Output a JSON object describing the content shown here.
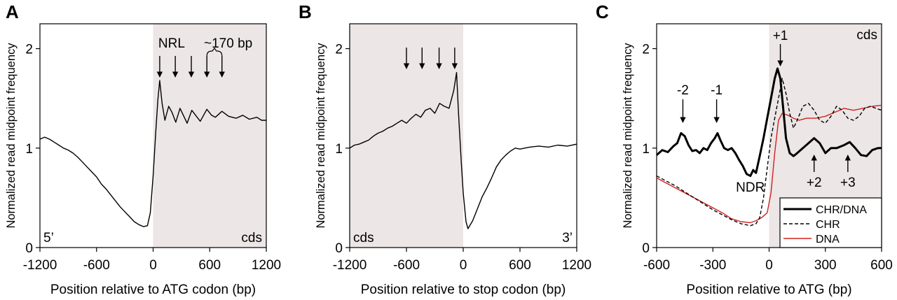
{
  "chart_data": [
    {
      "panel": "A",
      "type": "line",
      "xlabel": "Position relative to ATG codon (bp)",
      "ylabel": "Normalized read midpoint frequency",
      "xlim": [
        -1200,
        1200
      ],
      "ylim": [
        0,
        2.25
      ],
      "xticks": [
        "-1200",
        "-600",
        "0",
        "600",
        "1200"
      ],
      "yticks": [
        "0",
        "1",
        "2"
      ],
      "shaded_region": [
        0,
        1200
      ],
      "corner_labels": {
        "left": "5’",
        "right": "cds"
      },
      "annotations": {
        "nrl": "NRL",
        "spacing": "~170 bp"
      },
      "arrow_x": [
        70,
        235,
        405,
        570,
        730
      ],
      "series": [
        {
          "color": "#000000",
          "points": [
            [
              -1200,
              1.09
            ],
            [
              -1150,
              1.11
            ],
            [
              -1100,
              1.09
            ],
            [
              -1050,
              1.06
            ],
            [
              -1000,
              1.03
            ],
            [
              -950,
              1.0
            ],
            [
              -900,
              0.98
            ],
            [
              -850,
              0.95
            ],
            [
              -800,
              0.91
            ],
            [
              -750,
              0.86
            ],
            [
              -700,
              0.81
            ],
            [
              -650,
              0.76
            ],
            [
              -600,
              0.71
            ],
            [
              -550,
              0.64
            ],
            [
              -500,
              0.59
            ],
            [
              -450,
              0.53
            ],
            [
              -400,
              0.47
            ],
            [
              -350,
              0.41
            ],
            [
              -300,
              0.36
            ],
            [
              -250,
              0.31
            ],
            [
              -200,
              0.26
            ],
            [
              -150,
              0.23
            ],
            [
              -100,
              0.21
            ],
            [
              -60,
              0.22
            ],
            [
              -30,
              0.35
            ],
            [
              0,
              0.72
            ],
            [
              25,
              1.12
            ],
            [
              50,
              1.48
            ],
            [
              70,
              1.68
            ],
            [
              95,
              1.45
            ],
            [
              125,
              1.28
            ],
            [
              165,
              1.42
            ],
            [
              200,
              1.36
            ],
            [
              240,
              1.26
            ],
            [
              285,
              1.4
            ],
            [
              320,
              1.33
            ],
            [
              360,
              1.25
            ],
            [
              410,
              1.38
            ],
            [
              450,
              1.33
            ],
            [
              500,
              1.27
            ],
            [
              570,
              1.39
            ],
            [
              620,
              1.33
            ],
            [
              660,
              1.31
            ],
            [
              730,
              1.37
            ],
            [
              800,
              1.32
            ],
            [
              880,
              1.3
            ],
            [
              950,
              1.33
            ],
            [
              1020,
              1.29
            ],
            [
              1100,
              1.31
            ],
            [
              1150,
              1.28
            ],
            [
              1200,
              1.28
            ]
          ]
        }
      ]
    },
    {
      "panel": "B",
      "type": "line",
      "xlabel": "Position relative to stop codon (bp)",
      "ylabel": "Normalized read midpoint frequency",
      "xlim": [
        -1200,
        1200
      ],
      "ylim": [
        0,
        2.25
      ],
      "xticks": [
        "-1200",
        "-600",
        "0",
        "600",
        "1200"
      ],
      "yticks": [
        "0",
        "1",
        "2"
      ],
      "shaded_region": [
        -1200,
        0
      ],
      "corner_labels": {
        "left": "cds",
        "right": "3’"
      },
      "arrow_x": [
        -600,
        -435,
        -255,
        -90
      ],
      "series": [
        {
          "color": "#000000",
          "points": [
            [
              -1200,
              1.0
            ],
            [
              -1150,
              1.03
            ],
            [
              -1100,
              1.04
            ],
            [
              -1050,
              1.06
            ],
            [
              -1000,
              1.08
            ],
            [
              -950,
              1.12
            ],
            [
              -900,
              1.15
            ],
            [
              -850,
              1.17
            ],
            [
              -800,
              1.2
            ],
            [
              -750,
              1.22
            ],
            [
              -700,
              1.25
            ],
            [
              -650,
              1.28
            ],
            [
              -600,
              1.25
            ],
            [
              -550,
              1.3
            ],
            [
              -500,
              1.34
            ],
            [
              -450,
              1.31
            ],
            [
              -400,
              1.38
            ],
            [
              -350,
              1.4
            ],
            [
              -300,
              1.35
            ],
            [
              -250,
              1.45
            ],
            [
              -200,
              1.42
            ],
            [
              -150,
              1.4
            ],
            [
              -100,
              1.58
            ],
            [
              -70,
              1.76
            ],
            [
              -50,
              1.35
            ],
            [
              -20,
              0.85
            ],
            [
              0,
              0.55
            ],
            [
              30,
              0.26
            ],
            [
              50,
              0.19
            ],
            [
              100,
              0.27
            ],
            [
              150,
              0.39
            ],
            [
              200,
              0.51
            ],
            [
              250,
              0.6
            ],
            [
              300,
              0.7
            ],
            [
              350,
              0.81
            ],
            [
              400,
              0.88
            ],
            [
              450,
              0.93
            ],
            [
              500,
              0.97
            ],
            [
              550,
              1.0
            ],
            [
              600,
              0.99
            ],
            [
              700,
              1.01
            ],
            [
              800,
              1.02
            ],
            [
              900,
              1.01
            ],
            [
              1000,
              1.03
            ],
            [
              1100,
              1.02
            ],
            [
              1200,
              1.04
            ]
          ]
        }
      ]
    },
    {
      "panel": "C",
      "type": "line",
      "xlabel": "Position relative to ATG (bp)",
      "ylabel": "Normalized read midpoint frequency",
      "xlim": [
        -600,
        600
      ],
      "ylim": [
        0,
        2.25
      ],
      "xticks": [
        "-600",
        "-300",
        "0",
        "300",
        "600"
      ],
      "yticks": [
        "0",
        "1",
        "2"
      ],
      "shaded_region": [
        0,
        600
      ],
      "corner_labels": {
        "right": "cds"
      },
      "annotations": {
        "minus2": "-2",
        "minus1": "-1",
        "plus1": "+1",
        "plus2": "+2",
        "plus3": "+3",
        "ndr": "NDR"
      },
      "arrows": {
        "minus2": -460,
        "minus1": -280,
        "plus1": 60,
        "plus2": 240,
        "plus3": 420
      },
      "series": [
        {
          "name": "CHR/DNA",
          "color": "#000000",
          "style": "thick",
          "points": [
            [
              -600,
              0.93
            ],
            [
              -570,
              0.98
            ],
            [
              -540,
              0.96
            ],
            [
              -510,
              1.02
            ],
            [
              -490,
              1.05
            ],
            [
              -470,
              1.15
            ],
            [
              -450,
              1.12
            ],
            [
              -430,
              1.03
            ],
            [
              -410,
              0.97
            ],
            [
              -390,
              0.98
            ],
            [
              -370,
              0.95
            ],
            [
              -350,
              1.0
            ],
            [
              -330,
              0.98
            ],
            [
              -310,
              1.05
            ],
            [
              -290,
              1.1
            ],
            [
              -275,
              1.15
            ],
            [
              -260,
              1.08
            ],
            [
              -240,
              1.0
            ],
            [
              -220,
              0.98
            ],
            [
              -200,
              1.0
            ],
            [
              -180,
              0.95
            ],
            [
              -160,
              0.88
            ],
            [
              -140,
              0.82
            ],
            [
              -120,
              0.74
            ],
            [
              -100,
              0.72
            ],
            [
              -85,
              0.78
            ],
            [
              -70,
              0.75
            ],
            [
              -50,
              0.92
            ],
            [
              -30,
              1.1
            ],
            [
              -10,
              1.3
            ],
            [
              10,
              1.5
            ],
            [
              30,
              1.7
            ],
            [
              45,
              1.8
            ],
            [
              60,
              1.7
            ],
            [
              75,
              1.4
            ],
            [
              90,
              1.1
            ],
            [
              110,
              0.95
            ],
            [
              130,
              0.92
            ],
            [
              150,
              0.95
            ],
            [
              180,
              1.0
            ],
            [
              210,
              1.05
            ],
            [
              240,
              1.1
            ],
            [
              270,
              1.05
            ],
            [
              300,
              0.95
            ],
            [
              330,
              1.0
            ],
            [
              360,
              1.0
            ],
            [
              400,
              1.03
            ],
            [
              430,
              1.06
            ],
            [
              460,
              1.0
            ],
            [
              490,
              0.93
            ],
            [
              520,
              0.92
            ],
            [
              550,
              0.98
            ],
            [
              580,
              1.0
            ],
            [
              600,
              1.0
            ]
          ]
        },
        {
          "name": "CHR",
          "color": "#000000",
          "style": "dashed",
          "points": [
            [
              -600,
              0.72
            ],
            [
              -550,
              0.67
            ],
            [
              -500,
              0.62
            ],
            [
              -450,
              0.56
            ],
            [
              -400,
              0.5
            ],
            [
              -350,
              0.44
            ],
            [
              -300,
              0.38
            ],
            [
              -250,
              0.33
            ],
            [
              -200,
              0.28
            ],
            [
              -150,
              0.24
            ],
            [
              -100,
              0.22
            ],
            [
              -70,
              0.24
            ],
            [
              -50,
              0.3
            ],
            [
              -30,
              0.5
            ],
            [
              -10,
              0.8
            ],
            [
              10,
              1.1
            ],
            [
              30,
              1.3
            ],
            [
              50,
              1.5
            ],
            [
              70,
              1.7
            ],
            [
              90,
              1.55
            ],
            [
              110,
              1.35
            ],
            [
              130,
              1.2
            ],
            [
              150,
              1.28
            ],
            [
              180,
              1.42
            ],
            [
              210,
              1.45
            ],
            [
              240,
              1.38
            ],
            [
              270,
              1.28
            ],
            [
              300,
              1.25
            ],
            [
              330,
              1.32
            ],
            [
              360,
              1.42
            ],
            [
              390,
              1.38
            ],
            [
              420,
              1.3
            ],
            [
              450,
              1.28
            ],
            [
              480,
              1.32
            ],
            [
              510,
              1.4
            ],
            [
              540,
              1.42
            ],
            [
              570,
              1.4
            ],
            [
              600,
              1.38
            ]
          ]
        },
        {
          "name": "DNA",
          "color": "#d42020",
          "style": "solid",
          "points": [
            [
              -600,
              0.7
            ],
            [
              -550,
              0.65
            ],
            [
              -500,
              0.6
            ],
            [
              -450,
              0.55
            ],
            [
              -400,
              0.5
            ],
            [
              -350,
              0.45
            ],
            [
              -300,
              0.4
            ],
            [
              -250,
              0.35
            ],
            [
              -200,
              0.29
            ],
            [
              -150,
              0.26
            ],
            [
              -100,
              0.25
            ],
            [
              -70,
              0.27
            ],
            [
              -40,
              0.3
            ],
            [
              -10,
              0.35
            ],
            [
              10,
              0.55
            ],
            [
              30,
              0.95
            ],
            [
              50,
              1.28
            ],
            [
              70,
              1.35
            ],
            [
              100,
              1.33
            ],
            [
              130,
              1.3
            ],
            [
              160,
              1.28
            ],
            [
              200,
              1.3
            ],
            [
              250,
              1.3
            ],
            [
              300,
              1.32
            ],
            [
              350,
              1.36
            ],
            [
              400,
              1.4
            ],
            [
              450,
              1.38
            ],
            [
              500,
              1.4
            ],
            [
              550,
              1.42
            ],
            [
              600,
              1.43
            ]
          ]
        }
      ]
    }
  ]
}
